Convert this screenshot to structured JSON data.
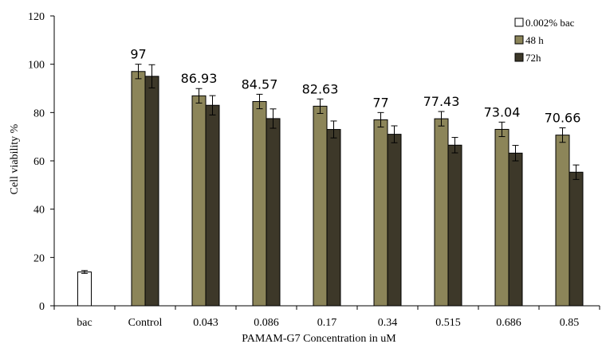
{
  "chart_data": {
    "type": "bar",
    "xlabel": "PAMAM-G7 Concentration in uM",
    "ylabel": "Cell viability %",
    "ylim": [
      0,
      120
    ],
    "yticks": [
      0,
      20,
      40,
      60,
      80,
      100,
      120
    ],
    "grid": false,
    "legend_position": "top-right",
    "categories": [
      "bac",
      "Control",
      "0.043",
      "0.086",
      "0.17",
      "0.34",
      "0.515",
      "0.686",
      "0.85"
    ],
    "series": [
      {
        "name": "0.002% bac",
        "color": "#ffffff",
        "values": [
          14,
          null,
          null,
          null,
          null,
          null,
          null,
          null,
          null
        ],
        "errors": [
          0.6,
          null,
          null,
          null,
          null,
          null,
          null,
          null,
          null
        ]
      },
      {
        "name": "48 h",
        "color": "#8c8559",
        "values": [
          null,
          97,
          86.93,
          84.57,
          82.63,
          77,
          77.43,
          73.04,
          70.66
        ],
        "errors": [
          null,
          3,
          3,
          3,
          3,
          3,
          3,
          3,
          3
        ]
      },
      {
        "name": "72h",
        "color": "#3d3829",
        "values": [
          null,
          95,
          83,
          77.5,
          73,
          71,
          66.5,
          63.2,
          55.3
        ],
        "errors": [
          null,
          4.8,
          4,
          4,
          3.5,
          3.5,
          3.2,
          3.2,
          3
        ]
      }
    ],
    "data_labels": [
      "",
      "97",
      "86.93",
      "84.57",
      "82.63",
      "77",
      "77.43",
      "73.04",
      "70.66"
    ]
  }
}
